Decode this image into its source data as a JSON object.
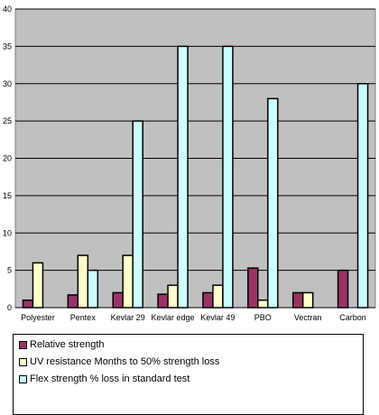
{
  "chart_data": {
    "type": "bar",
    "categories": [
      "Polyester",
      "Pentex",
      "Kevlar 29",
      "Kevlar edge",
      "Kevlar 49",
      "PBO",
      "Vectran",
      "Carbon"
    ],
    "series": [
      {
        "name": "Relative strength",
        "values": [
          1,
          1.7,
          2,
          1.8,
          2,
          5.3,
          2,
          5
        ],
        "color": "#993366"
      },
      {
        "name": "UV resistance Months to 50% strength loss",
        "values": [
          6,
          7,
          7,
          3,
          3,
          1,
          2,
          0
        ],
        "color": "#ffffcc"
      },
      {
        "name": "Flex strength % loss in standard test",
        "values": [
          0,
          5,
          25,
          35,
          35,
          28,
          0,
          30
        ],
        "color": "#ccffff"
      }
    ],
    "yticks": [
      0,
      5,
      10,
      15,
      20,
      25,
      30,
      35,
      40
    ],
    "ylim": [
      0,
      40
    ],
    "grid": true,
    "legend_position": "bottom"
  },
  "colors": {
    "plot_background": "#c0c0c0",
    "gridline": "#000000",
    "bar_outline": "#000000"
  }
}
